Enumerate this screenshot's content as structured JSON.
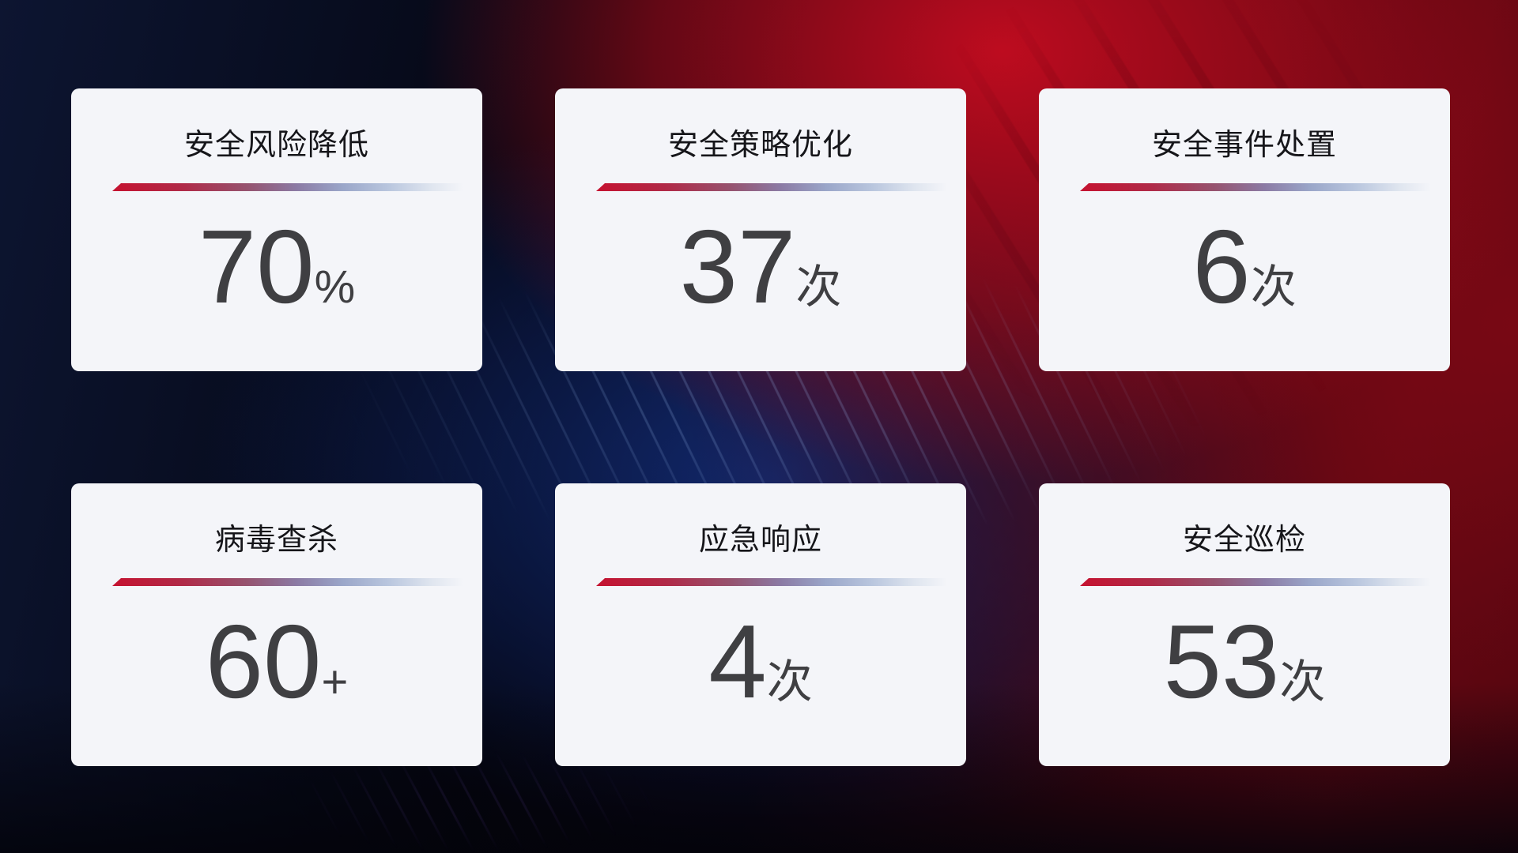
{
  "theme": {
    "background_navy": "#0d1531",
    "background_red_bright": "#c50c20",
    "background_red_dark": "#52050f",
    "background_blue_glow": "#122c76",
    "card_background": "#f4f5f9",
    "title_color": "#16161a",
    "value_color": "#3f3f42",
    "line_gradient_start": "#c51230",
    "line_gradient_mid": "#8b7aa4",
    "line_gradient_end": "#dfe5ef"
  },
  "cards": [
    {
      "title": "安全风险降低",
      "value": "70",
      "unit": "%"
    },
    {
      "title": "安全策略优化",
      "value": "37",
      "unit": "次"
    },
    {
      "title": "安全事件处置",
      "value": "6",
      "unit": "次"
    },
    {
      "title": "病毒查杀",
      "value": "60",
      "unit": "+"
    },
    {
      "title": "应急响应",
      "value": "4",
      "unit": "次"
    },
    {
      "title": "安全巡检",
      "value": "53",
      "unit": "次"
    }
  ]
}
